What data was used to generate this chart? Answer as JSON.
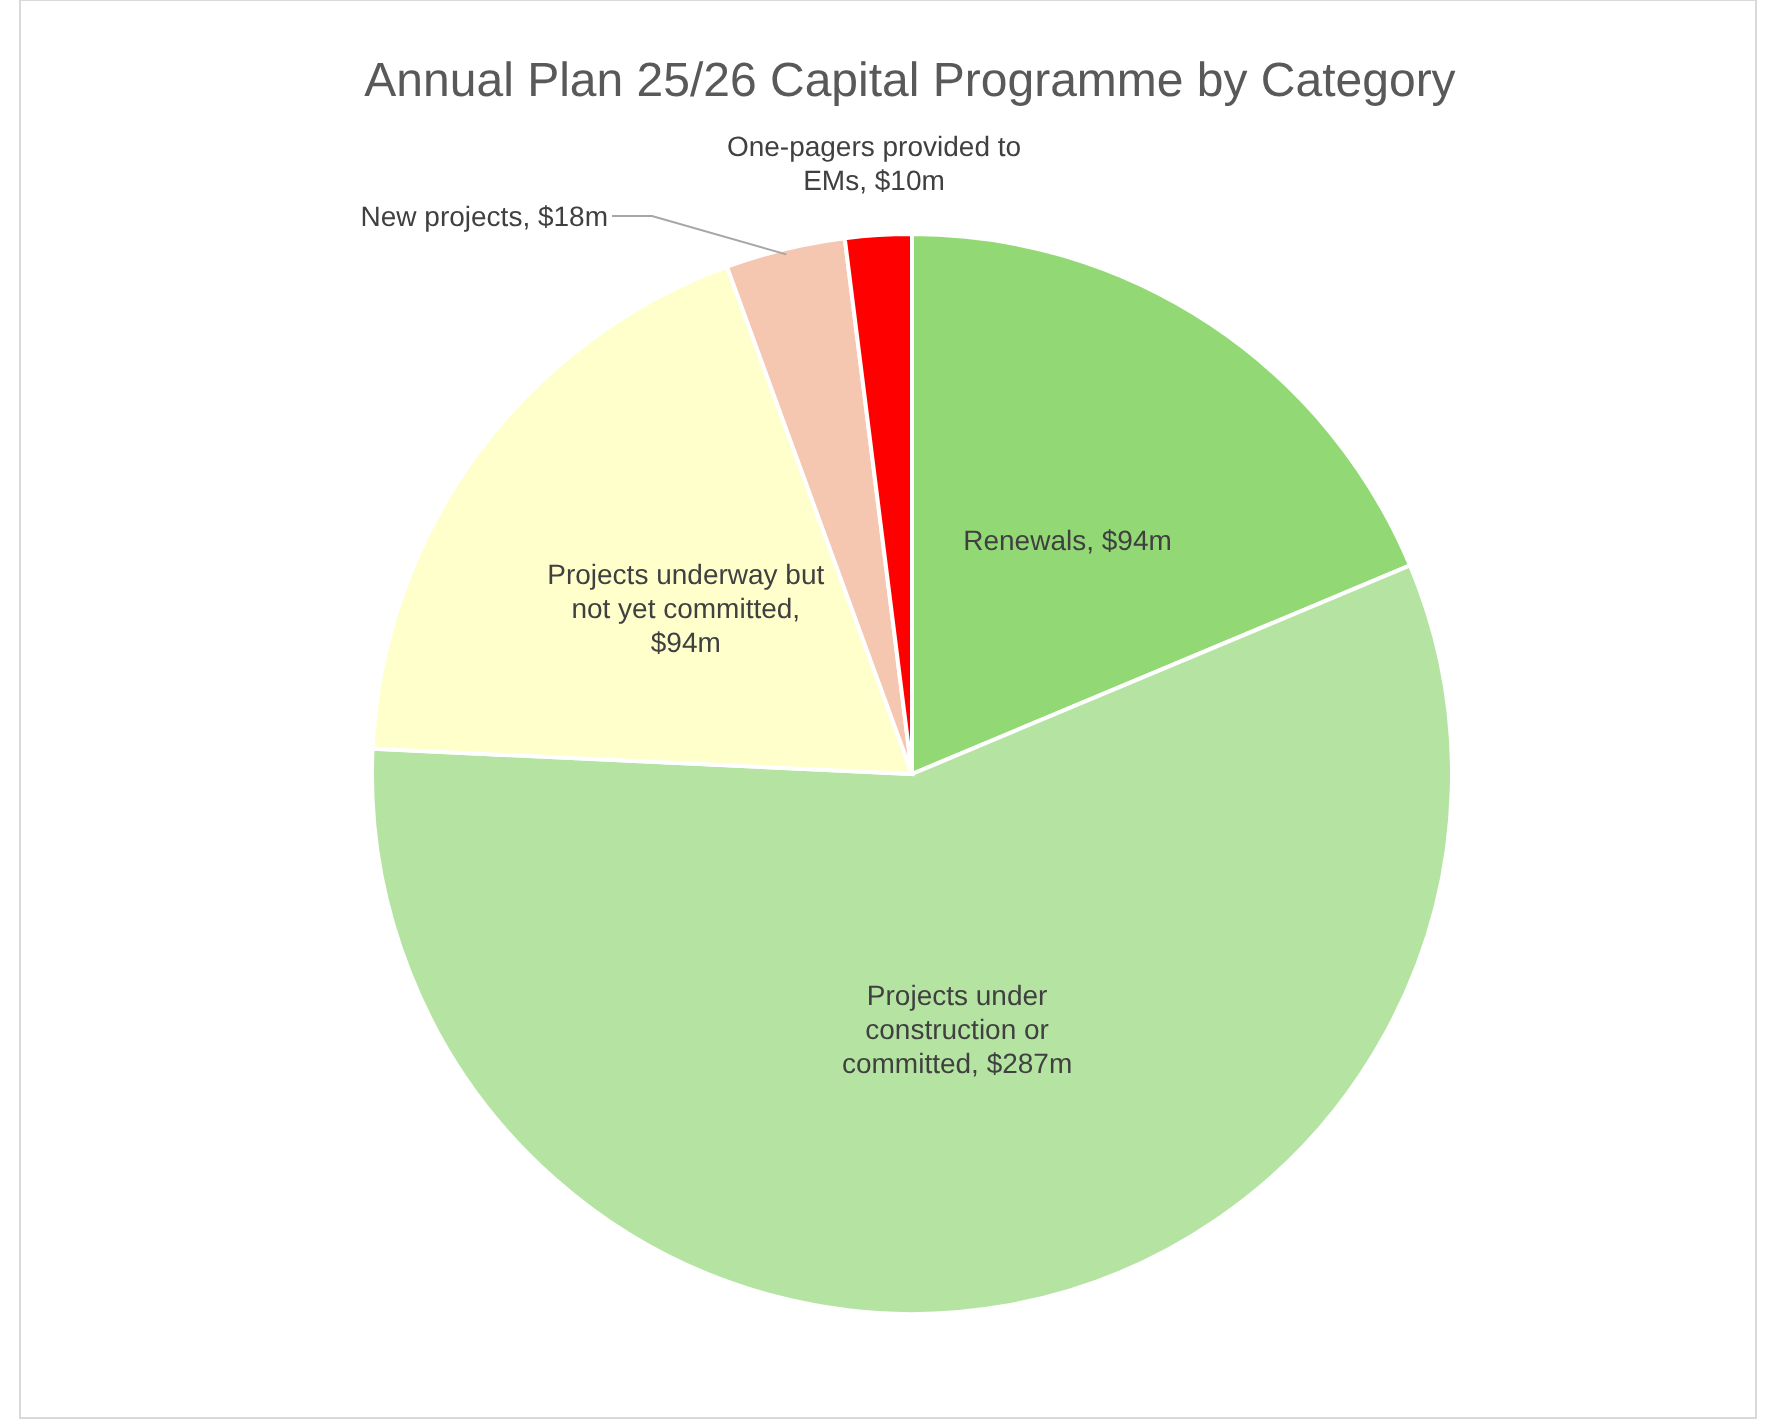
{
  "chart_data": {
    "type": "pie",
    "title": "Annual Plan 25/26 Capital Programme by Category",
    "categories": [
      "Renewals, $94m",
      "Projects under construction or committed, $287m",
      "Projects underway but not yet committed, $94m",
      "New projects, $18m",
      "One-pagers provided to EMs, $10m"
    ],
    "values": [
      94,
      287,
      94,
      18,
      10
    ],
    "colors": [
      "#92d975",
      "#b5e4a2",
      "#ffffcc",
      "#f5c6b0",
      "#ff0000"
    ],
    "legend": false
  }
}
